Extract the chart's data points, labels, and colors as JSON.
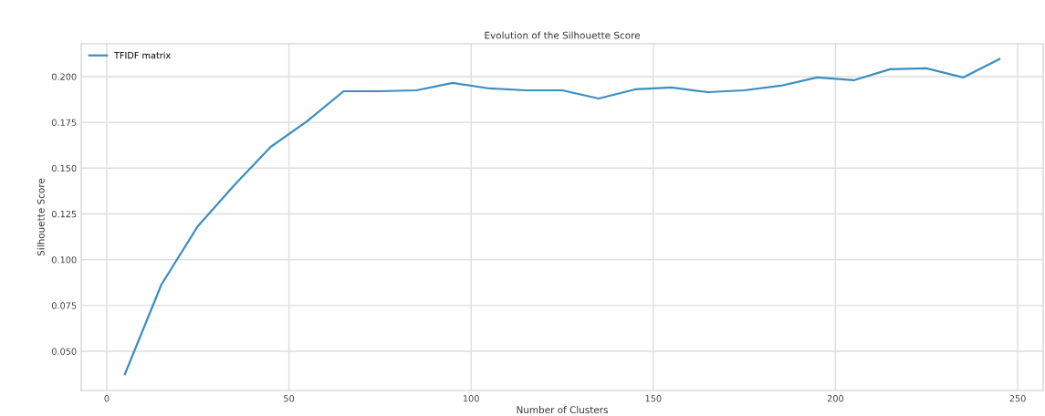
{
  "chart_data": {
    "type": "line",
    "title": "Evolution of the Silhouette Score",
    "xlabel": "Number of Clusters",
    "ylabel": "Silhouette Score",
    "x": [
      5,
      15,
      25,
      35,
      45,
      55,
      65,
      75,
      85,
      95,
      105,
      115,
      125,
      135,
      145,
      155,
      165,
      175,
      185,
      195,
      205,
      215,
      225,
      235,
      245
    ],
    "series": [
      {
        "name": "TFIDF matrix",
        "color": "#3a8fc0",
        "values": [
          0.0376,
          0.0864,
          0.1183,
          0.1407,
          0.1616,
          0.1756,
          0.192,
          0.192,
          0.1925,
          0.1965,
          0.1935,
          0.1925,
          0.1925,
          0.188,
          0.193,
          0.194,
          0.1915,
          0.1925,
          0.195,
          0.1995,
          0.198,
          0.204,
          0.2045,
          0.1995,
          0.2095
        ]
      }
    ],
    "xlim": [
      -7,
      257
    ],
    "xticks": [
      0,
      50,
      100,
      150,
      200,
      250
    ],
    "ylim": [
      0.0286,
      0.2179
    ],
    "yticks": [
      {
        "value": 0.05,
        "label": "0.050"
      },
      {
        "value": 0.075,
        "label": "0.075"
      },
      {
        "value": 0.1,
        "label": "0.100"
      },
      {
        "value": 0.125,
        "label": "0.125"
      },
      {
        "value": 0.15,
        "label": "0.150"
      },
      {
        "value": 0.175,
        "label": "0.175"
      },
      {
        "value": 0.2,
        "label": "0.200"
      }
    ],
    "grid": true,
    "legend": "top left",
    "marker": "none",
    "line_style": "solid"
  }
}
